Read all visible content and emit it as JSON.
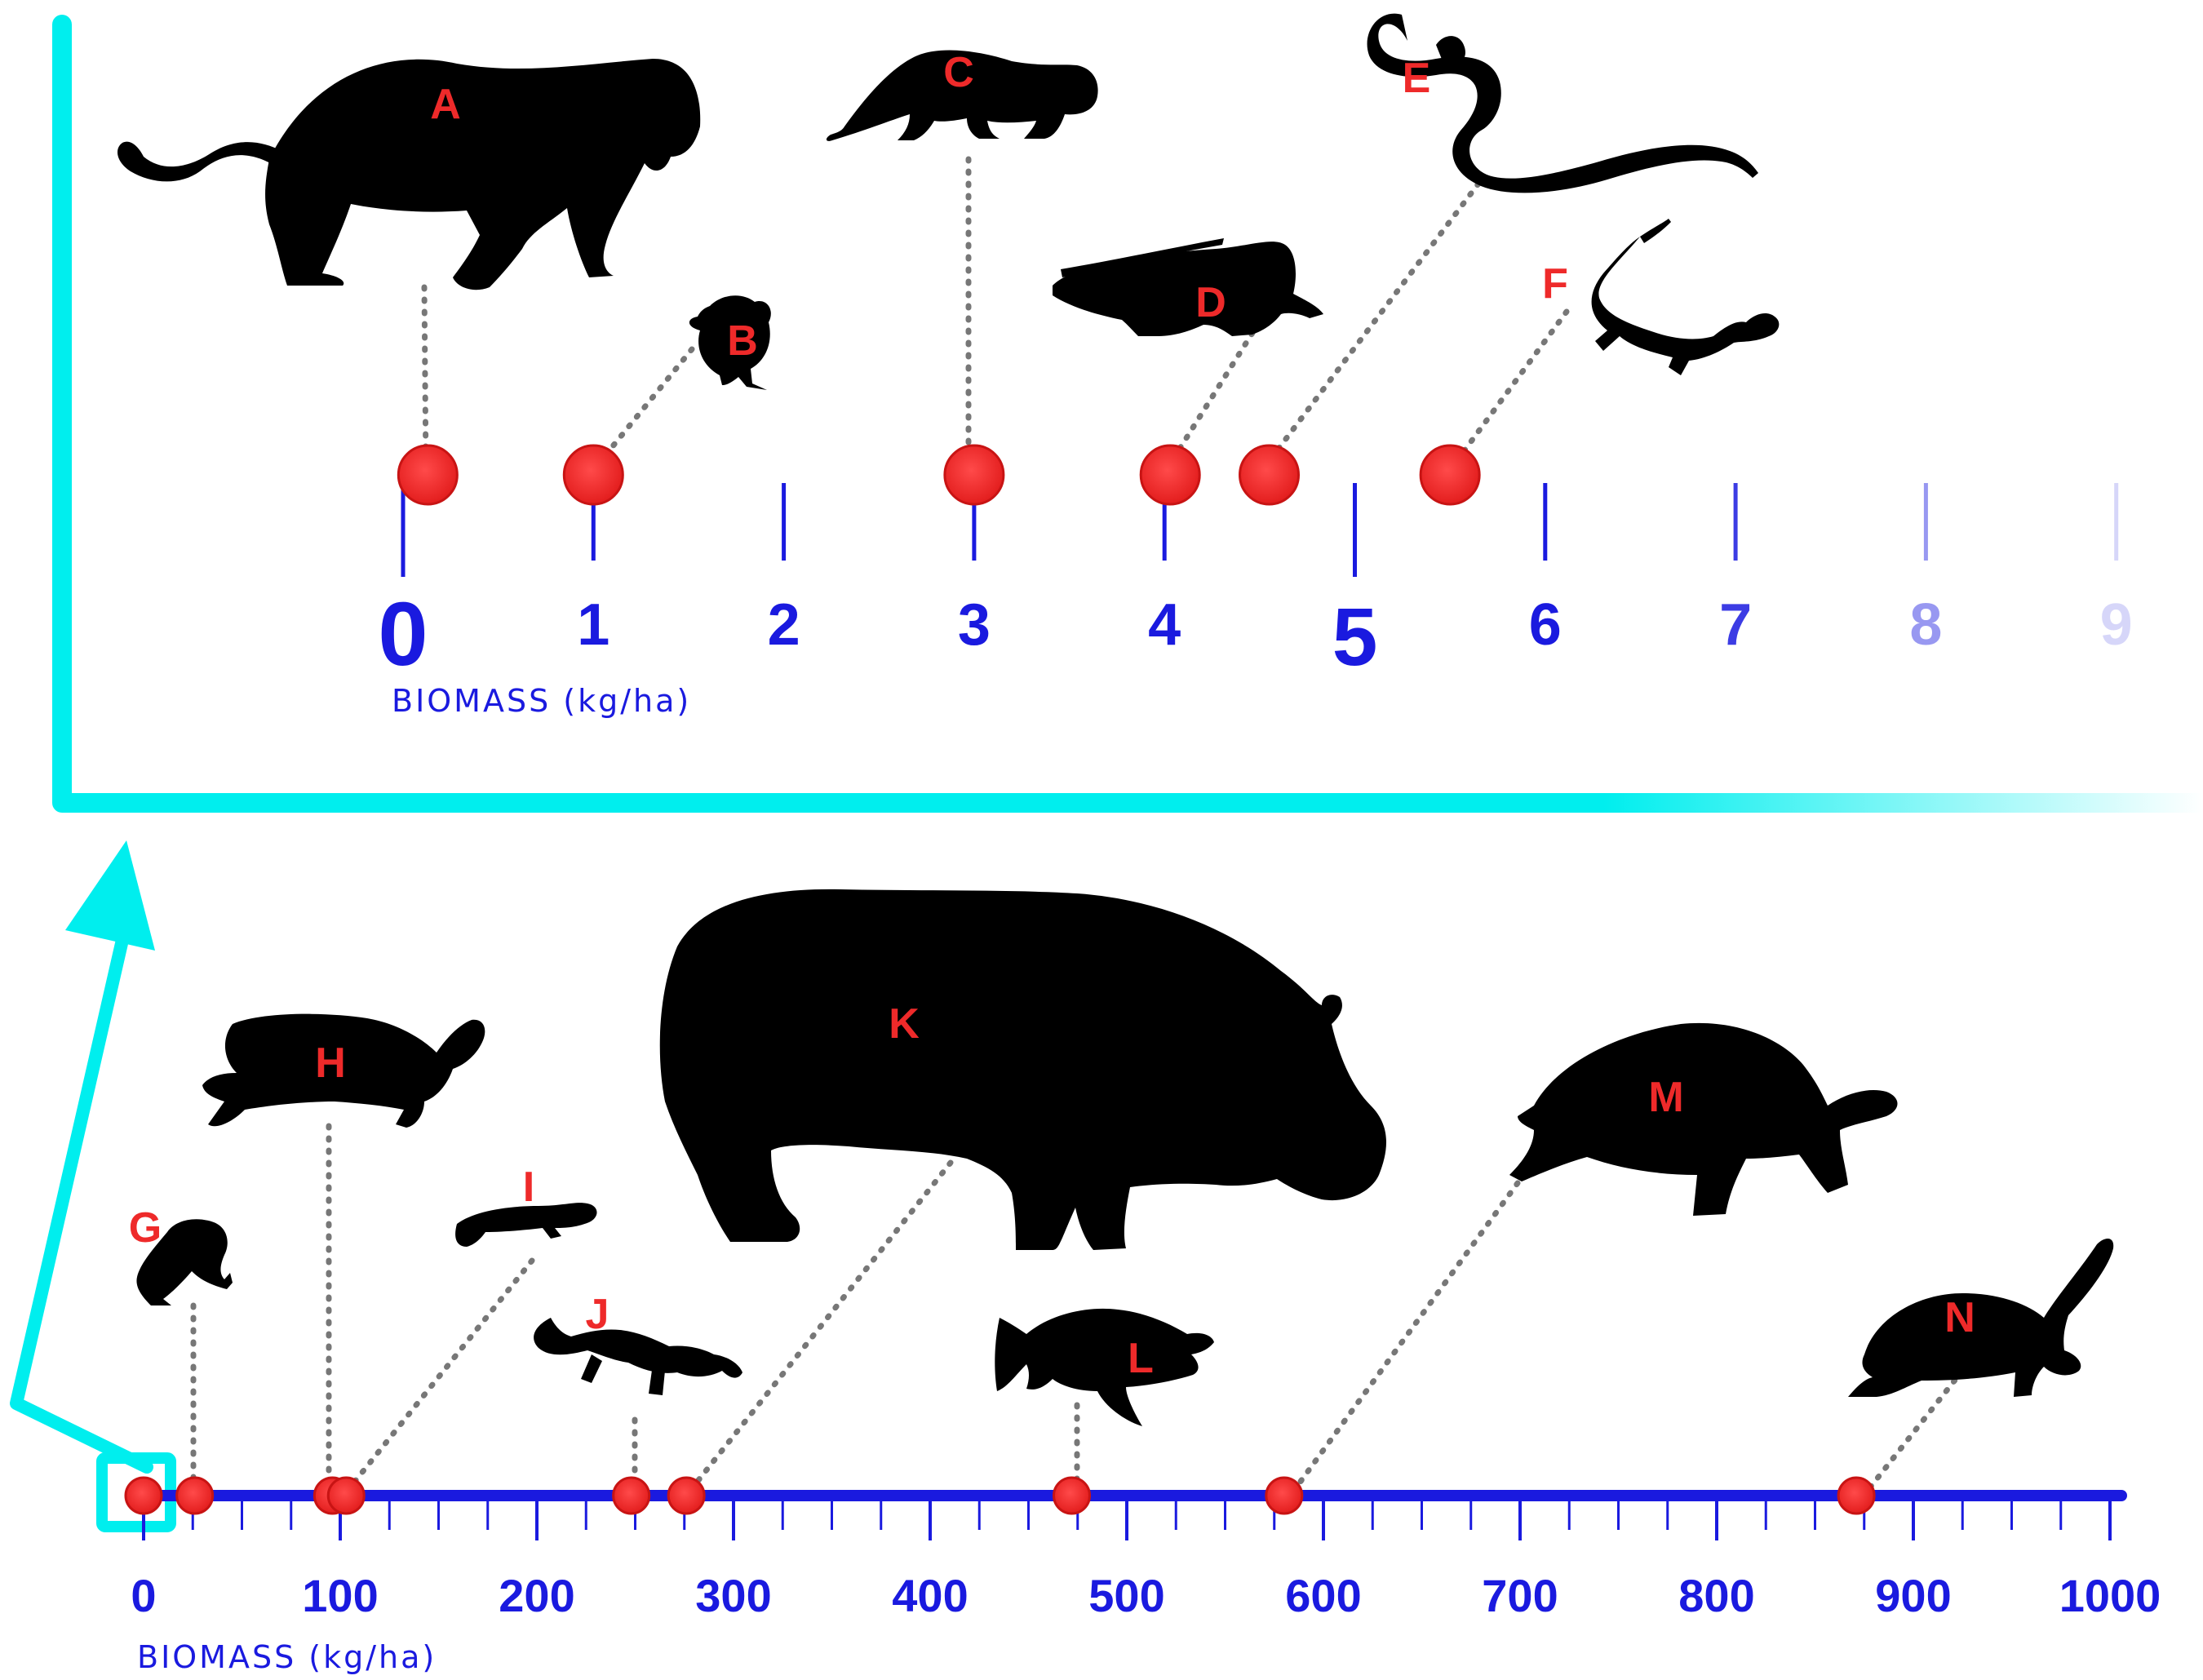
{
  "upper_axis": {
    "title": "BIOMASS (kg/ha)",
    "ticks": [
      "0",
      "1",
      "2",
      "3",
      "4",
      "5",
      "6",
      "7",
      "8",
      "9"
    ],
    "range": [
      0,
      9
    ],
    "color": "#1a1adf",
    "markers": [
      {
        "label": "A",
        "value": 0.13
      },
      {
        "label": "B",
        "value": 1.0
      },
      {
        "label": "C",
        "value": 3.0
      },
      {
        "label": "D",
        "value": 4.03
      },
      {
        "label": "E",
        "value": 4.55
      },
      {
        "label": "F",
        "value": 5.5
      }
    ]
  },
  "lower_axis": {
    "title": "BIOMASS (kg/ha)",
    "ticks": [
      "0",
      "100",
      "200",
      "300",
      "400",
      "500",
      "600",
      "700",
      "800",
      "900",
      "1000"
    ],
    "range": [
      0,
      1000
    ],
    "color": "#1a1adf",
    "markers": [
      {
        "label": "",
        "value": 0
      },
      {
        "label": "G",
        "value": 26
      },
      {
        "label": "H",
        "value": 96
      },
      {
        "label": "I",
        "value": 103
      },
      {
        "label": "J",
        "value": 248
      },
      {
        "label": "K",
        "value": 276
      },
      {
        "label": "L",
        "value": 472
      },
      {
        "label": "M",
        "value": 580
      },
      {
        "label": "N",
        "value": 871
      }
    ]
  },
  "colors": {
    "axis": "#1a1adf",
    "marker": "#ee2a2a",
    "letters": "#ee2a2a",
    "callout": "#00eeee",
    "silhouette": "#000000"
  },
  "icons": {
    "A": "big-cat-icon",
    "B": "bird-chick-icon",
    "C": "mongoose-icon",
    "D": "iguana-icon",
    "E": "snake-icon",
    "F": "lizard-icon",
    "G": "frog-icon",
    "H": "pond-turtle-icon",
    "I": "skink-icon",
    "J": "salamander-icon",
    "K": "hippopotamus-icon",
    "L": "fish-icon",
    "M": "tortoise-icon",
    "N": "softshell-turtle-icon"
  }
}
